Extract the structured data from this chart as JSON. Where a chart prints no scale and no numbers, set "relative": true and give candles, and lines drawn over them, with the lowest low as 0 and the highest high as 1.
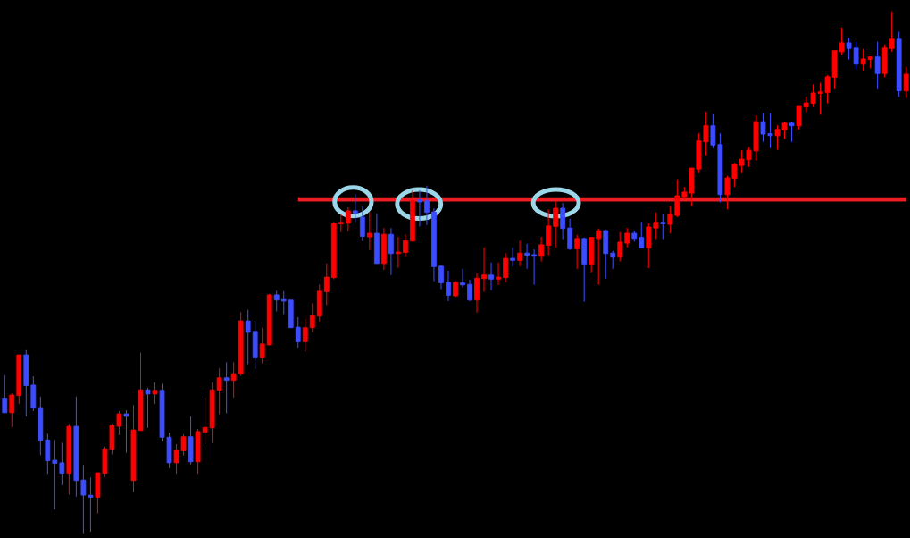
{
  "chart_data": {
    "type": "candlestick",
    "relative": true,
    "tick_labels": false,
    "categories": [
      null,
      null,
      null,
      null,
      null,
      null,
      null,
      null,
      null,
      null,
      null,
      null,
      null,
      null,
      null,
      null,
      null,
      null,
      null,
      null,
      null,
      null,
      null,
      null,
      null,
      null,
      null,
      null,
      null,
      null,
      null,
      null,
      null,
      null,
      null,
      null,
      null,
      null,
      null,
      null,
      null,
      null,
      null,
      null,
      null,
      null,
      null,
      null,
      null,
      null,
      null,
      null,
      null,
      null,
      null,
      null,
      null,
      null,
      null,
      null,
      null,
      null,
      null,
      null,
      null,
      null,
      null,
      null,
      null,
      null,
      null,
      null,
      null,
      null,
      null,
      null,
      null,
      null,
      null,
      null,
      null,
      null,
      null,
      null,
      null,
      null,
      null,
      null,
      null,
      null,
      null,
      null,
      null,
      null,
      null,
      null,
      null,
      null,
      null,
      null,
      null,
      null,
      null,
      null,
      null,
      null,
      null,
      null,
      null,
      null,
      null,
      null,
      null,
      null,
      null,
      null,
      null,
      null,
      null,
      null,
      null,
      null,
      null,
      null,
      null,
      null,
      null
    ],
    "ohlc": [
      [
        0.259,
        0.303,
        0.231,
        0.231
      ],
      [
        0.231,
        0.268,
        0.204,
        0.265
      ],
      [
        0.264,
        0.342,
        0.248,
        0.342
      ],
      [
        0.342,
        0.351,
        0.224,
        0.283
      ],
      [
        0.284,
        0.301,
        0.234,
        0.24
      ],
      [
        0.241,
        0.262,
        0.15,
        0.178
      ],
      [
        0.179,
        0.191,
        0.114,
        0.139
      ],
      [
        0.14,
        0.179,
        0.046,
        0.134
      ],
      [
        0.135,
        0.174,
        0.092,
        0.115
      ],
      [
        0.115,
        0.21,
        0.074,
        0.205
      ],
      [
        0.205,
        0.262,
        0.07,
        0.101
      ],
      [
        0.102,
        0.131,
        0,
        0.073
      ],
      [
        0.073,
        0.107,
        0.003,
        0.069
      ],
      [
        0.069,
        0.116,
        0.038,
        0.116
      ],
      [
        0.115,
        0.166,
        0.108,
        0.162
      ],
      [
        0.161,
        0.21,
        0.151,
        0.207
      ],
      [
        0.205,
        0.234,
        0.188,
        0.229
      ],
      [
        0.229,
        0.236,
        0.154,
        0.224
      ],
      [
        0.101,
        0.246,
        0.079,
        0.198
      ],
      [
        0.197,
        0.346,
        0.197,
        0.275
      ],
      [
        0.275,
        0.279,
        0.202,
        0.267
      ],
      [
        0.267,
        0.289,
        0.248,
        0.274
      ],
      [
        0.274,
        0.287,
        0.176,
        0.184
      ],
      [
        0.184,
        0.193,
        0.125,
        0.135
      ],
      [
        0.135,
        0.171,
        0.114,
        0.159
      ],
      [
        0.158,
        0.19,
        0.149,
        0.185
      ],
      [
        0.185,
        0.224,
        0.132,
        0.137
      ],
      [
        0.137,
        0.2,
        0.114,
        0.195
      ],
      [
        0.194,
        0.26,
        0.171,
        0.203
      ],
      [
        0.202,
        0.289,
        0.173,
        0.275
      ],
      [
        0.274,
        0.316,
        0.228,
        0.298
      ],
      [
        0.298,
        0.328,
        0.23,
        0.293
      ],
      [
        0.293,
        0.328,
        0.26,
        0.306
      ],
      [
        0.305,
        0.424,
        0.302,
        0.407
      ],
      [
        0.407,
        0.428,
        0.324,
        0.385
      ],
      [
        0.387,
        0.407,
        0.315,
        0.336
      ],
      [
        0.336,
        0.394,
        0.326,
        0.363
      ],
      [
        0.361,
        0.459,
        0.36,
        0.457
      ],
      [
        0.457,
        0.465,
        0.425,
        0.447
      ],
      [
        0.448,
        0.464,
        0.42,
        0.445
      ],
      [
        0.447,
        0.447,
        0.394,
        0.394
      ],
      [
        0.395,
        0.414,
        0.356,
        0.367
      ],
      [
        0.367,
        0.411,
        0.348,
        0.394
      ],
      [
        0.394,
        0.441,
        0.385,
        0.418
      ],
      [
        0.416,
        0.477,
        0.406,
        0.464
      ],
      [
        0.463,
        0.517,
        0.437,
        0.491
      ],
      [
        0.49,
        0.597,
        0.487,
        0.594
      ],
      [
        0.593,
        0.611,
        0.577,
        0.596
      ],
      [
        0.594,
        0.625,
        0.579,
        0.618
      ],
      [
        0.618,
        0.65,
        0.597,
        0.613
      ],
      [
        0.606,
        0.627,
        0.56,
        0.569
      ],
      [
        0.568,
        0.616,
        0.543,
        0.575
      ],
      [
        0.575,
        0.613,
        0.517,
        0.517
      ],
      [
        0.517,
        0.585,
        0.505,
        0.573
      ],
      [
        0.573,
        0.585,
        0.495,
        0.536
      ],
      [
        0.536,
        0.568,
        0.509,
        0.539
      ],
      [
        0.538,
        0.573,
        0.529,
        0.561
      ],
      [
        0.56,
        0.657,
        0.559,
        0.637
      ],
      [
        0.639,
        0.657,
        0.588,
        0.635
      ],
      [
        0.637,
        0.666,
        0.591,
        0.615
      ],
      [
        0.616,
        0.623,
        0.483,
        0.511
      ],
      [
        0.512,
        0.513,
        0.468,
        0.48
      ],
      [
        0.481,
        0.503,
        0.445,
        0.456
      ],
      [
        0.455,
        0.484,
        0.453,
        0.481
      ],
      [
        0.48,
        0.507,
        0.471,
        0.476
      ],
      [
        0.477,
        0.486,
        0.445,
        0.447
      ],
      [
        0.447,
        0.498,
        0.423,
        0.489
      ],
      [
        0.488,
        0.548,
        0.463,
        0.495
      ],
      [
        0.495,
        0.519,
        0.466,
        0.487
      ],
      [
        0.487,
        0.519,
        0.476,
        0.491
      ],
      [
        0.49,
        0.537,
        0.481,
        0.527
      ],
      [
        0.527,
        0.548,
        0.511,
        0.523
      ],
      [
        0.523,
        0.561,
        0.512,
        0.537
      ],
      [
        0.537,
        0.555,
        0.507,
        0.533
      ],
      [
        0.534,
        0.544,
        0.476,
        0.531
      ],
      [
        0.531,
        0.568,
        0.521,
        0.553
      ],
      [
        0.552,
        0.621,
        0.533,
        0.589
      ],
      [
        0.588,
        0.637,
        0.548,
        0.623
      ],
      [
        0.623,
        0.633,
        0.564,
        0.584
      ],
      [
        0.585,
        0.603,
        0.543,
        0.545
      ],
      [
        0.545,
        0.572,
        0.507,
        0.565
      ],
      [
        0.565,
        0.567,
        0.444,
        0.516
      ],
      [
        0.516,
        0.568,
        0.5,
        0.567
      ],
      [
        0.565,
        0.584,
        0.476,
        0.58
      ],
      [
        0.58,
        0.582,
        0.488,
        0.536
      ],
      [
        0.537,
        0.541,
        0.507,
        0.529
      ],
      [
        0.529,
        0.577,
        0.521,
        0.558
      ],
      [
        0.556,
        0.585,
        0.548,
        0.575
      ],
      [
        0.575,
        0.58,
        0.559,
        0.565
      ],
      [
        0.567,
        0.597,
        0.547,
        0.547
      ],
      [
        0.547,
        0.594,
        0.508,
        0.587
      ],
      [
        0.585,
        0.615,
        0.564,
        0.596
      ],
      [
        0.596,
        0.611,
        0.564,
        0.593
      ],
      [
        0.592,
        0.627,
        0.575,
        0.611
      ],
      [
        0.609,
        0.678,
        0.606,
        0.647
      ],
      [
        0.645,
        0.664,
        0.639,
        0.654
      ],
      [
        0.652,
        0.7,
        0.627,
        0.7
      ],
      [
        0.698,
        0.767,
        0.69,
        0.752
      ],
      [
        0.75,
        0.808,
        0.724,
        0.781
      ],
      [
        0.781,
        0.803,
        0.738,
        0.744
      ],
      [
        0.745,
        0.767,
        0.634,
        0.649
      ],
      [
        0.649,
        0.685,
        0.621,
        0.681
      ],
      [
        0.68,
        0.71,
        0.664,
        0.707
      ],
      [
        0.705,
        0.734,
        0.69,
        0.717
      ],
      [
        0.716,
        0.74,
        0.702,
        0.734
      ],
      [
        0.733,
        0.801,
        0.714,
        0.789
      ],
      [
        0.789,
        0.805,
        0.75,
        0.765
      ],
      [
        0.766,
        0.805,
        0.738,
        0.762
      ],
      [
        0.762,
        0.782,
        0.735,
        0.774
      ],
      [
        0.773,
        0.789,
        0.756,
        0.786
      ],
      [
        0.786,
        0.789,
        0.75,
        0.781
      ],
      [
        0.781,
        0.818,
        0.774,
        0.818
      ],
      [
        0.817,
        0.837,
        0.807,
        0.825
      ],
      [
        0.824,
        0.86,
        0.817,
        0.844
      ],
      [
        0.843,
        0.863,
        0.802,
        0.846
      ],
      [
        0.845,
        0.878,
        0.824,
        0.875
      ],
      [
        0.874,
        0.925,
        0.851,
        0.925
      ],
      [
        0.923,
        0.969,
        0.917,
        0.94
      ],
      [
        0.94,
        0.949,
        0.908,
        0.929
      ],
      [
        0.93,
        0.942,
        0.889,
        0.899
      ],
      [
        0.899,
        0.928,
        0.886,
        0.909
      ],
      [
        0.908,
        0.914,
        0.891,
        0.913
      ],
      [
        0.913,
        0.942,
        0.851,
        0.881
      ],
      [
        0.881,
        0.937,
        0.874,
        0.93
      ],
      [
        0.929,
        1,
        0.923,
        0.947
      ],
      [
        0.947,
        0.961,
        0.836,
        0.848
      ],
      [
        0.848,
        0.894,
        0.834,
        0.88
      ]
    ],
    "colors": [
      "#3c4cff",
      "#ff0000",
      "#ff0000",
      "#3c4cff",
      "#3c4cff",
      "#3c4cff",
      "#3c4cff",
      "#3c4cff",
      "#3c4cff",
      "#ff0000",
      "#3c4cff",
      "#3c4cff",
      "#3c4cff",
      "#ff0000",
      "#ff0000",
      "#ff0000",
      "#ff0000",
      "#3c4cff",
      "#ff0000",
      "#ff0000",
      "#3c4cff",
      "#ff0000",
      "#3c4cff",
      "#3c4cff",
      "#ff0000",
      "#ff0000",
      "#3c4cff",
      "#ff0000",
      "#ff0000",
      "#ff0000",
      "#ff0000",
      "#3c4cff",
      "#ff0000",
      "#ff0000",
      "#3c4cff",
      "#3c4cff",
      "#ff0000",
      "#ff0000",
      "#3c4cff",
      "#3c4cff",
      "#3c4cff",
      "#3c4cff",
      "#ff0000",
      "#ff0000",
      "#ff0000",
      "#ff0000",
      "#ff0000",
      "#ff0000",
      "#ff0000",
      "#3c4cff",
      "#3c4cff",
      "#ff0000",
      "#3c4cff",
      "#ff0000",
      "#3c4cff",
      "#ff0000",
      "#ff0000",
      "#ff0000",
      "#3c4cff",
      "#3c4cff",
      "#3c4cff",
      "#3c4cff",
      "#3c4cff",
      "#ff0000",
      "#3c4cff",
      "#3c4cff",
      "#ff0000",
      "#ff0000",
      "#3c4cff",
      "#ff0000",
      "#ff0000",
      "#3c4cff",
      "#ff0000",
      "#3c4cff",
      "#3c4cff",
      "#ff0000",
      "#ff0000",
      "#ff0000",
      "#3c4cff",
      "#3c4cff",
      "#ff0000",
      "#3c4cff",
      "#ff0000",
      "#ff0000",
      "#3c4cff",
      "#3c4cff",
      "#ff0000",
      "#ff0000",
      "#3c4cff",
      "#3c4cff",
      "#ff0000",
      "#ff0000",
      "#3c4cff",
      "#ff0000",
      "#ff0000",
      "#ff0000",
      "#ff0000",
      "#ff0000",
      "#ff0000",
      "#3c4cff",
      "#3c4cff",
      "#ff0000",
      "#ff0000",
      "#ff0000",
      "#ff0000",
      "#ff0000",
      "#3c4cff",
      "#3c4cff",
      "#ff0000",
      "#ff0000",
      "#3c4cff",
      "#ff0000",
      "#ff0000",
      "#ff0000",
      "#ff0000",
      "#ff0000",
      "#ff0000",
      "#ff0000",
      "#3c4cff",
      "#3c4cff",
      "#ff0000",
      "#ff0000",
      "#3c4cff",
      "#ff0000",
      "#ff0000",
      "#3c4cff",
      "#ff0000"
    ],
    "series": [
      {
        "type": "line",
        "color": "#ee1c24",
        "values": [
          null,
          null,
          null,
          null,
          null,
          null,
          null,
          null,
          null,
          null,
          null,
          null,
          null,
          null,
          null,
          null,
          null,
          null,
          null,
          null,
          null,
          null,
          null,
          null,
          null,
          null,
          null,
          null,
          null,
          null,
          null,
          null,
          null,
          null,
          null,
          null,
          null,
          null,
          null,
          null,
          null,
          0.64,
          0.64,
          0.64,
          0.64,
          0.64,
          0.64,
          0.64,
          0.64,
          0.64,
          0.64,
          0.64,
          0.64,
          0.64,
          0.64,
          0.64,
          0.64,
          0.64,
          0.64,
          0.64,
          0.64,
          0.64,
          0.64,
          0.64,
          0.64,
          0.64,
          0.64,
          0.64,
          0.64,
          0.64,
          0.64,
          0.64,
          0.64,
          0.64,
          0.64,
          0.64,
          0.64,
          0.64,
          0.64,
          0.64,
          0.64,
          0.64,
          0.64,
          0.64,
          0.64,
          0.64,
          0.64,
          0.64,
          0.64,
          0.64,
          0.64,
          0.64,
          0.64,
          0.64,
          0.64,
          0.64,
          0.64,
          0.64,
          0.64,
          0.64,
          0.64,
          0.64,
          0.64,
          0.64,
          0.64,
          0.64,
          0.64,
          0.64,
          0.64,
          0.64,
          0.64,
          0.64,
          0.64,
          0.64,
          0.64,
          0.64,
          0.64,
          0.64,
          0.64,
          0.64,
          0.64,
          0.64,
          0.64,
          0.64,
          0.64,
          0.64,
          0.64
        ]
      }
    ]
  }
}
